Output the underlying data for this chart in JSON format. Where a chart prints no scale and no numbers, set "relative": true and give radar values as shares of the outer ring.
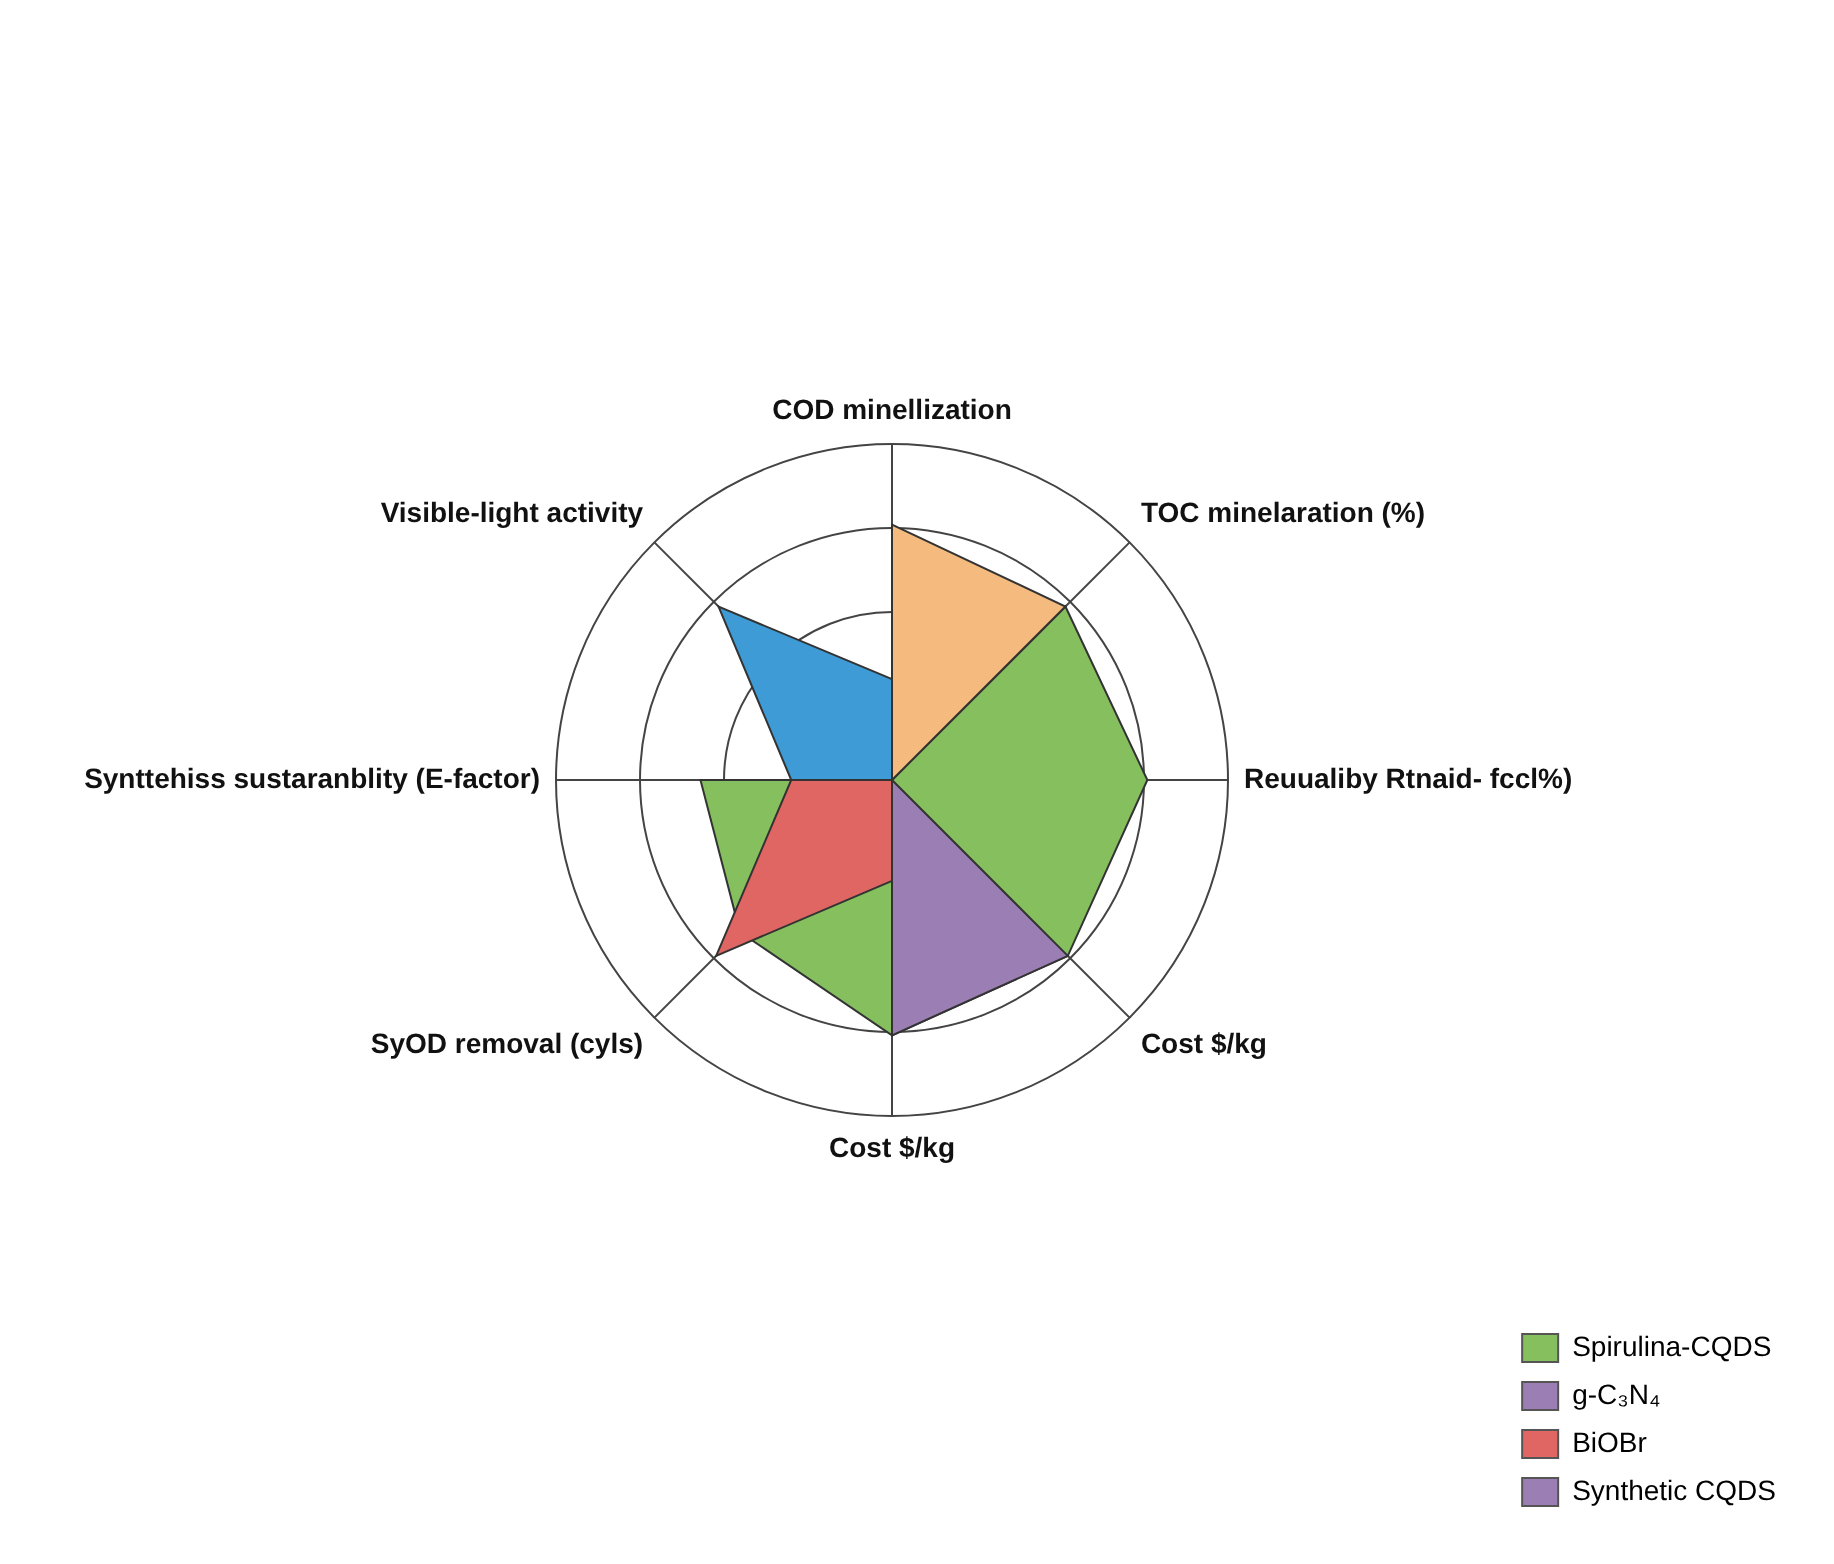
{
  "chart_data": {
    "type": "radar",
    "relative": true,
    "grid": true,
    "legend": "bottom right",
    "categories": [
      "COD minellization",
      "TOC minelaration (%)",
      "Reuualiby Rtnaid- fccl%)",
      "Cost $/kg",
      "Cost $/kg",
      "SyOD removal (cyls)",
      "Synttehiss sustaranblity (E-factor)",
      "Visible-light activity"
    ],
    "series": [
      {
        "name": "Spirulina-CQDS",
        "color": "#86c05e",
        "values": [
          0,
          0.73,
          0.76,
          0.74,
          0.76,
          0.64,
          0.57,
          0
        ]
      },
      {
        "name": "g-C₃N₄",
        "color": "#9b7fb4",
        "values": [
          0,
          0,
          0,
          0.74,
          0.76,
          0,
          0,
          0
        ]
      },
      {
        "name": "BiOBr",
        "color": "#e06663",
        "values": [
          0,
          0,
          0,
          0,
          0.3,
          0.74,
          0.3,
          0
        ]
      },
      {
        "color": "#3e9bd6",
        "values": [
          0.3,
          0,
          0,
          0,
          0,
          0,
          0.3,
          0.73
        ]
      },
      {
        "color": "#f5bb7e",
        "values": [
          0.76,
          0.73,
          0,
          0,
          0,
          0,
          0,
          0
        ]
      },
      {
        "name": "Synthetic CQDS",
        "color": "#9b7fb4",
        "values": [
          null,
          null,
          null,
          null,
          null,
          null,
          null,
          null
        ]
      }
    ]
  }
}
